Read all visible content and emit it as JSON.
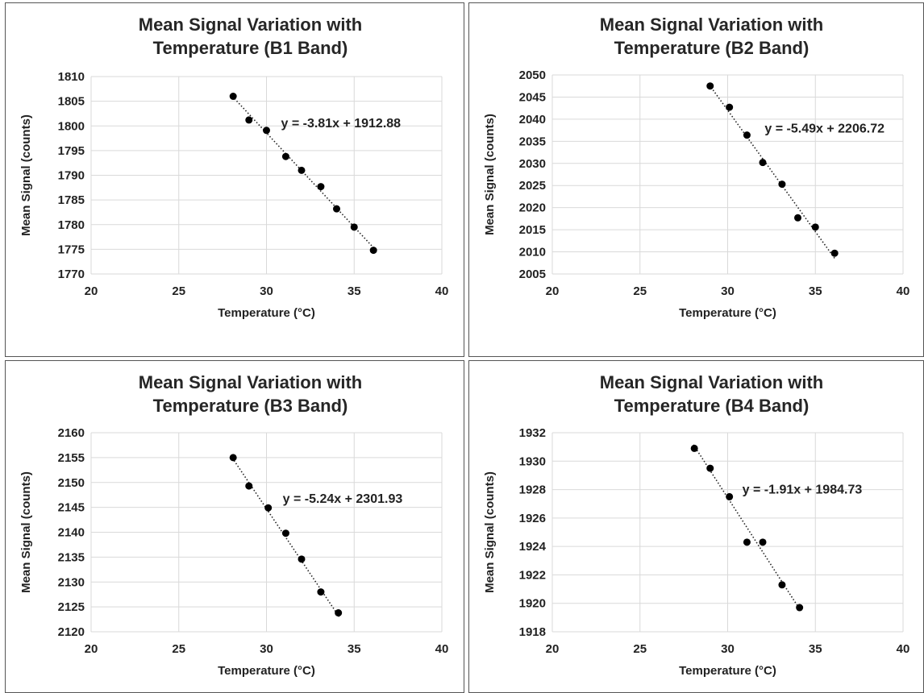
{
  "chart_data": [
    {
      "type": "scatter",
      "title": [
        "Mean Signal Variation with",
        "Temperature (B1 Band)"
      ],
      "xlabel": "Temperature (°C)",
      "ylabel": "Mean Signal (counts)",
      "xlim": [
        20,
        40
      ],
      "ylim": [
        1770,
        1810
      ],
      "xticks": [
        20,
        25,
        30,
        35,
        40
      ],
      "yticks": [
        1770,
        1775,
        1780,
        1785,
        1790,
        1795,
        1800,
        1805,
        1810
      ],
      "grid": true,
      "x": [
        28.1,
        29.0,
        30.0,
        31.1,
        32.0,
        33.1,
        34.0,
        35.0,
        36.1
      ],
      "y": [
        1806.0,
        1801.2,
        1799.1,
        1793.8,
        1791.0,
        1787.7,
        1783.2,
        1779.5,
        1774.8
      ],
      "trendline": {
        "slope": -3.81,
        "intercept": 1912.88,
        "label": "y = -3.81x + 1912.88"
      },
      "colors": {
        "points": "#000000",
        "grid": "#d9d9d9"
      }
    },
    {
      "type": "scatter",
      "title": [
        "Mean Signal Variation with",
        "Temperature (B2 Band)"
      ],
      "xlabel": "Temperature (°C)",
      "ylabel": "Mean Signal (counts)",
      "xlim": [
        20,
        40
      ],
      "ylim": [
        2005,
        2050
      ],
      "xticks": [
        20,
        25,
        30,
        35,
        40
      ],
      "yticks": [
        2005,
        2010,
        2015,
        2020,
        2025,
        2030,
        2035,
        2040,
        2045,
        2050
      ],
      "grid": true,
      "x": [
        29.0,
        30.1,
        31.1,
        32.0,
        33.1,
        34.0,
        35.0,
        36.1
      ],
      "y": [
        2047.5,
        2042.7,
        2036.4,
        2030.2,
        2025.3,
        2017.7,
        2015.6,
        2009.7
      ],
      "trendline": {
        "slope": -5.49,
        "intercept": 2206.72,
        "label": "y = -5.49x + 2206.72"
      },
      "colors": {
        "points": "#000000",
        "grid": "#d9d9d9"
      }
    },
    {
      "type": "scatter",
      "title": [
        "Mean Signal Variation with",
        "Temperature (B3 Band)"
      ],
      "xlabel": "Temperature (°C)",
      "ylabel": "Mean Signal (counts)",
      "xlim": [
        20,
        40
      ],
      "ylim": [
        2120,
        2160
      ],
      "xticks": [
        20,
        25,
        30,
        35,
        40
      ],
      "yticks": [
        2120,
        2125,
        2130,
        2135,
        2140,
        2145,
        2150,
        2155,
        2160
      ],
      "grid": true,
      "x": [
        28.1,
        29.0,
        30.1,
        31.1,
        32.0,
        33.1,
        34.1
      ],
      "y": [
        2155.0,
        2149.3,
        2144.9,
        2139.8,
        2134.6,
        2128.0,
        2123.8
      ],
      "trendline": {
        "slope": -5.24,
        "intercept": 2301.93,
        "label": "y = -5.24x + 2301.93"
      },
      "colors": {
        "points": "#000000",
        "grid": "#d9d9d9"
      }
    },
    {
      "type": "scatter",
      "title": [
        "Mean Signal Variation with",
        "Temperature (B4 Band)"
      ],
      "xlabel": "Temperature (°C)",
      "ylabel": "Mean Signal (counts)",
      "xlim": [
        20,
        40
      ],
      "ylim": [
        1918,
        1932
      ],
      "xticks": [
        20,
        25,
        30,
        35,
        40
      ],
      "yticks": [
        1918,
        1920,
        1922,
        1924,
        1926,
        1928,
        1930,
        1932
      ],
      "grid": true,
      "x": [
        28.1,
        29.0,
        30.1,
        31.1,
        32.0,
        33.1,
        34.1
      ],
      "y": [
        1930.9,
        1929.5,
        1927.5,
        1924.3,
        1924.3,
        1921.3,
        1919.7
      ],
      "trendline": {
        "slope": -1.91,
        "intercept": 1984.73,
        "label": "y = -1.91x + 1984.73"
      },
      "colors": {
        "points": "#000000",
        "grid": "#d9d9d9"
      }
    }
  ]
}
